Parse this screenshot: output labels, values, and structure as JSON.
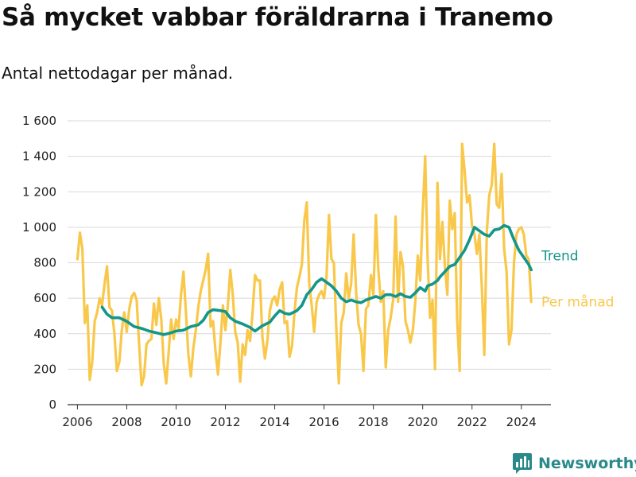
{
  "title": "Så mycket vabbar föräldrarna i Tranemo",
  "subtitle": "Antal nettodagar per månad.",
  "brand": {
    "name": "Newsworthy",
    "icon": "newsworthy-chart-icon",
    "color": "#2a8a8a"
  },
  "chart_data": {
    "type": "line",
    "title": "Så mycket vabbar föräldrarna i Tranemo",
    "subtitle": "Antal nettodagar per månad.",
    "xlabel": "",
    "ylabel": "",
    "xlim": [
      2005.6,
      2025.2
    ],
    "ylim": [
      0,
      1600
    ],
    "grid": true,
    "legend": "inline-right",
    "x_ticks": [
      {
        "value": 2006,
        "label": "2006"
      },
      {
        "value": 2008,
        "label": "2008"
      },
      {
        "value": 2010,
        "label": "2010"
      },
      {
        "value": 2012,
        "label": "2012"
      },
      {
        "value": 2014,
        "label": "2014"
      },
      {
        "value": 2016,
        "label": "2016"
      },
      {
        "value": 2018,
        "label": "2018"
      },
      {
        "value": 2020,
        "label": "2020"
      },
      {
        "value": 2022,
        "label": "2022"
      },
      {
        "value": 2024,
        "label": "2024"
      }
    ],
    "y_ticks": [
      {
        "value": 0,
        "label": "0"
      },
      {
        "value": 200,
        "label": "200"
      },
      {
        "value": 400,
        "label": "400"
      },
      {
        "value": 600,
        "label": "600"
      },
      {
        "value": 800,
        "label": "800"
      },
      {
        "value": 1000,
        "label": "1 000"
      },
      {
        "value": 1200,
        "label": "1 200"
      },
      {
        "value": 1400,
        "label": "1 400"
      },
      {
        "value": 1600,
        "label": "1 600"
      }
    ],
    "series": [
      {
        "name": "Per månad",
        "color": "#f9c84a",
        "points": [
          [
            2006.0,
            820
          ],
          [
            2006.1,
            970
          ],
          [
            2006.2,
            880
          ],
          [
            2006.3,
            460
          ],
          [
            2006.4,
            560
          ],
          [
            2006.5,
            140
          ],
          [
            2006.6,
            240
          ],
          [
            2006.7,
            470
          ],
          [
            2006.8,
            520
          ],
          [
            2006.9,
            600
          ],
          [
            2007.0,
            560
          ],
          [
            2007.1,
            680
          ],
          [
            2007.2,
            780
          ],
          [
            2007.3,
            550
          ],
          [
            2007.4,
            530
          ],
          [
            2007.5,
            400
          ],
          [
            2007.6,
            190
          ],
          [
            2007.7,
            240
          ],
          [
            2007.8,
            420
          ],
          [
            2007.9,
            520
          ],
          [
            2008.0,
            410
          ],
          [
            2008.1,
            540
          ],
          [
            2008.2,
            610
          ],
          [
            2008.3,
            630
          ],
          [
            2008.4,
            590
          ],
          [
            2008.5,
            340
          ],
          [
            2008.6,
            110
          ],
          [
            2008.7,
            160
          ],
          [
            2008.8,
            340
          ],
          [
            2008.9,
            360
          ],
          [
            2009.0,
            370
          ],
          [
            2009.1,
            570
          ],
          [
            2009.2,
            450
          ],
          [
            2009.3,
            600
          ],
          [
            2009.4,
            480
          ],
          [
            2009.5,
            230
          ],
          [
            2009.6,
            120
          ],
          [
            2009.7,
            300
          ],
          [
            2009.8,
            480
          ],
          [
            2009.9,
            370
          ],
          [
            2010.0,
            480
          ],
          [
            2010.1,
            430
          ],
          [
            2010.2,
            620
          ],
          [
            2010.3,
            750
          ],
          [
            2010.4,
            520
          ],
          [
            2010.5,
            280
          ],
          [
            2010.6,
            160
          ],
          [
            2010.7,
            320
          ],
          [
            2010.8,
            420
          ],
          [
            2010.9,
            550
          ],
          [
            2011.0,
            640
          ],
          [
            2011.1,
            700
          ],
          [
            2011.2,
            760
          ],
          [
            2011.3,
            850
          ],
          [
            2011.4,
            440
          ],
          [
            2011.5,
            470
          ],
          [
            2011.6,
            300
          ],
          [
            2011.7,
            170
          ],
          [
            2011.8,
            350
          ],
          [
            2011.9,
            560
          ],
          [
            2012.0,
            420
          ],
          [
            2012.1,
            560
          ],
          [
            2012.2,
            760
          ],
          [
            2012.3,
            620
          ],
          [
            2012.4,
            410
          ],
          [
            2012.5,
            350
          ],
          [
            2012.6,
            130
          ],
          [
            2012.7,
            340
          ],
          [
            2012.8,
            280
          ],
          [
            2012.9,
            420
          ],
          [
            2013.0,
            360
          ],
          [
            2013.1,
            520
          ],
          [
            2013.2,
            730
          ],
          [
            2013.3,
            700
          ],
          [
            2013.4,
            700
          ],
          [
            2013.5,
            380
          ],
          [
            2013.6,
            260
          ],
          [
            2013.7,
            360
          ],
          [
            2013.8,
            530
          ],
          [
            2013.9,
            590
          ],
          [
            2014.0,
            610
          ],
          [
            2014.1,
            560
          ],
          [
            2014.2,
            650
          ],
          [
            2014.3,
            690
          ],
          [
            2014.4,
            460
          ],
          [
            2014.5,
            470
          ],
          [
            2014.6,
            270
          ],
          [
            2014.7,
            330
          ],
          [
            2014.8,
            520
          ],
          [
            2014.9,
            660
          ],
          [
            2015.0,
            720
          ],
          [
            2015.1,
            790
          ],
          [
            2015.2,
            1040
          ],
          [
            2015.3,
            1140
          ],
          [
            2015.4,
            680
          ],
          [
            2015.5,
            560
          ],
          [
            2015.6,
            410
          ],
          [
            2015.7,
            580
          ],
          [
            2015.8,
            620
          ],
          [
            2015.9,
            640
          ],
          [
            2016.0,
            600
          ],
          [
            2016.1,
            720
          ],
          [
            2016.2,
            1070
          ],
          [
            2016.3,
            820
          ],
          [
            2016.4,
            800
          ],
          [
            2016.5,
            420
          ],
          [
            2016.6,
            120
          ],
          [
            2016.7,
            460
          ],
          [
            2016.8,
            520
          ],
          [
            2016.9,
            740
          ],
          [
            2017.0,
            600
          ],
          [
            2017.1,
            680
          ],
          [
            2017.2,
            960
          ],
          [
            2017.3,
            640
          ],
          [
            2017.4,
            450
          ],
          [
            2017.5,
            400
          ],
          [
            2017.6,
            190
          ],
          [
            2017.7,
            540
          ],
          [
            2017.8,
            560
          ],
          [
            2017.9,
            730
          ],
          [
            2018.0,
            620
          ],
          [
            2018.1,
            1070
          ],
          [
            2018.2,
            760
          ],
          [
            2018.3,
            580
          ],
          [
            2018.4,
            640
          ],
          [
            2018.5,
            210
          ],
          [
            2018.6,
            420
          ],
          [
            2018.7,
            490
          ],
          [
            2018.8,
            590
          ],
          [
            2018.9,
            1060
          ],
          [
            2019.0,
            580
          ],
          [
            2019.1,
            860
          ],
          [
            2019.2,
            780
          ],
          [
            2019.3,
            470
          ],
          [
            2019.4,
            420
          ],
          [
            2019.5,
            350
          ],
          [
            2019.6,
            420
          ],
          [
            2019.7,
            580
          ],
          [
            2019.8,
            840
          ],
          [
            2019.9,
            700
          ],
          [
            2020.0,
            1080
          ],
          [
            2020.1,
            1400
          ],
          [
            2020.2,
            820
          ],
          [
            2020.3,
            490
          ],
          [
            2020.4,
            590
          ],
          [
            2020.5,
            200
          ],
          [
            2020.6,
            1250
          ],
          [
            2020.7,
            820
          ],
          [
            2020.8,
            1030
          ],
          [
            2020.9,
            780
          ],
          [
            2021.0,
            620
          ],
          [
            2021.1,
            1150
          ],
          [
            2021.2,
            990
          ],
          [
            2021.3,
            1080
          ],
          [
            2021.4,
            470
          ],
          [
            2021.5,
            190
          ],
          [
            2021.6,
            1470
          ],
          [
            2021.7,
            1320
          ],
          [
            2021.8,
            1140
          ],
          [
            2021.9,
            1180
          ],
          [
            2022.0,
            1010
          ],
          [
            2022.1,
            960
          ],
          [
            2022.2,
            850
          ],
          [
            2022.3,
            960
          ],
          [
            2022.4,
            660
          ],
          [
            2022.5,
            280
          ],
          [
            2022.6,
            970
          ],
          [
            2022.7,
            1180
          ],
          [
            2022.8,
            1240
          ],
          [
            2022.9,
            1470
          ],
          [
            2023.0,
            1130
          ],
          [
            2023.1,
            1110
          ],
          [
            2023.2,
            1300
          ],
          [
            2023.3,
            880
          ],
          [
            2023.4,
            750
          ],
          [
            2023.5,
            340
          ],
          [
            2023.6,
            420
          ],
          [
            2023.7,
            800
          ],
          [
            2023.8,
            960
          ],
          [
            2023.9,
            990
          ],
          [
            2024.0,
            1000
          ],
          [
            2024.1,
            960
          ],
          [
            2024.2,
            840
          ],
          [
            2024.3,
            820
          ],
          [
            2024.4,
            580
          ]
        ]
      },
      {
        "name": "Trend",
        "color": "#14968a",
        "points": [
          [
            2007.0,
            550
          ],
          [
            2007.2,
            510
          ],
          [
            2007.4,
            490
          ],
          [
            2007.7,
            490
          ],
          [
            2008.0,
            470
          ],
          [
            2008.3,
            440
          ],
          [
            2008.6,
            430
          ],
          [
            2008.9,
            415
          ],
          [
            2009.2,
            405
          ],
          [
            2009.5,
            395
          ],
          [
            2009.8,
            405
          ],
          [
            2010.0,
            415
          ],
          [
            2010.3,
            420
          ],
          [
            2010.6,
            440
          ],
          [
            2010.9,
            450
          ],
          [
            2011.1,
            475
          ],
          [
            2011.3,
            520
          ],
          [
            2011.5,
            535
          ],
          [
            2011.8,
            530
          ],
          [
            2012.0,
            525
          ],
          [
            2012.2,
            490
          ],
          [
            2012.4,
            470
          ],
          [
            2012.7,
            455
          ],
          [
            2013.0,
            435
          ],
          [
            2013.2,
            415
          ],
          [
            2013.5,
            445
          ],
          [
            2013.8,
            465
          ],
          [
            2014.0,
            500
          ],
          [
            2014.2,
            530
          ],
          [
            2014.4,
            515
          ],
          [
            2014.6,
            510
          ],
          [
            2014.9,
            530
          ],
          [
            2015.1,
            560
          ],
          [
            2015.3,
            620
          ],
          [
            2015.5,
            650
          ],
          [
            2015.7,
            690
          ],
          [
            2015.9,
            710
          ],
          [
            2016.1,
            690
          ],
          [
            2016.3,
            670
          ],
          [
            2016.5,
            640
          ],
          [
            2016.7,
            600
          ],
          [
            2016.9,
            580
          ],
          [
            2017.1,
            590
          ],
          [
            2017.3,
            580
          ],
          [
            2017.5,
            575
          ],
          [
            2017.7,
            590
          ],
          [
            2017.9,
            600
          ],
          [
            2018.1,
            610
          ],
          [
            2018.3,
            600
          ],
          [
            2018.5,
            620
          ],
          [
            2018.7,
            620
          ],
          [
            2018.9,
            610
          ],
          [
            2019.1,
            625
          ],
          [
            2019.3,
            610
          ],
          [
            2019.5,
            605
          ],
          [
            2019.7,
            630
          ],
          [
            2019.9,
            660
          ],
          [
            2020.1,
            640
          ],
          [
            2020.2,
            670
          ],
          [
            2020.4,
            680
          ],
          [
            2020.6,
            700
          ],
          [
            2020.7,
            720
          ],
          [
            2020.9,
            750
          ],
          [
            2021.1,
            780
          ],
          [
            2021.3,
            790
          ],
          [
            2021.5,
            830
          ],
          [
            2021.7,
            870
          ],
          [
            2021.9,
            930
          ],
          [
            2022.1,
            1000
          ],
          [
            2022.3,
            980
          ],
          [
            2022.5,
            960
          ],
          [
            2022.7,
            950
          ],
          [
            2022.9,
            985
          ],
          [
            2023.1,
            990
          ],
          [
            2023.3,
            1010
          ],
          [
            2023.5,
            1000
          ],
          [
            2023.7,
            930
          ],
          [
            2023.9,
            870
          ],
          [
            2024.1,
            830
          ],
          [
            2024.3,
            790
          ],
          [
            2024.4,
            760
          ]
        ]
      }
    ]
  }
}
